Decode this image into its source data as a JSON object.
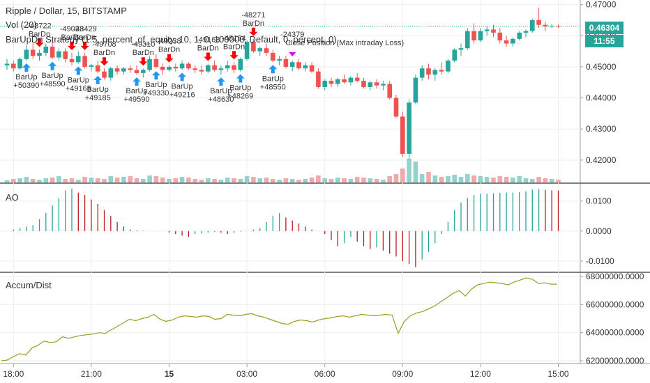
{
  "header": {
    "symbol_line": "Ripple / Dollar, 15, BITSTAMP",
    "vol_line": "Vol (20)",
    "strategy_line": "BarUpDn Strategy (1.5, percent_of_equity, 10, 1, 0, 100000, Default, 0, percent, 0)"
  },
  "panes": {
    "ao_title": "AO",
    "ad_title": "Accum/Dist"
  },
  "price_tag": {
    "last_price": "0.46304",
    "countdown": "11:55"
  },
  "colors": {
    "up": "#26a69a",
    "down": "#ef5350",
    "vol_up": "#80cbc4",
    "vol_down": "#ef9a9a",
    "buy": "#2196f3",
    "sell": "#ff0000",
    "close": "#d500f9",
    "ad_line": "#9e9d24",
    "ao_up": "#26a69a",
    "ao_down": "#b71c1c"
  },
  "chart_data": [
    {
      "type": "candlestick",
      "title": "Ripple / Dollar, 15, BITSTAMP",
      "ylim": [
        0.4128,
        0.4715
      ],
      "yticks": [
        0.42,
        0.43,
        0.44,
        0.45,
        0.46,
        0.47
      ],
      "ytick_labels": [
        "0.42000",
        "0.43000",
        "0.44000",
        "0.45000",
        "0.46000",
        "0.47000"
      ],
      "xticks": [
        {
          "pos": 1,
          "label": "18:00"
        },
        {
          "pos": 13,
          "label": "21:00"
        },
        {
          "pos": 25,
          "label": "15",
          "bold": true
        },
        {
          "pos": 37,
          "label": "03:00"
        },
        {
          "pos": 49,
          "label": "06:00"
        },
        {
          "pos": 61,
          "label": "09:00"
        },
        {
          "pos": 73,
          "label": "12:00"
        },
        {
          "pos": 85,
          "label": "15:00"
        }
      ],
      "last_price": 0.46304,
      "candles": [
        [
          0.4505,
          0.4525,
          0.449,
          0.451
        ],
        [
          0.451,
          0.452,
          0.4485,
          0.4495
        ],
        [
          0.4495,
          0.453,
          0.449,
          0.4525
        ],
        [
          0.4525,
          0.457,
          0.452,
          0.4555
        ],
        [
          0.4555,
          0.4575,
          0.4525,
          0.4535
        ],
        [
          0.4535,
          0.4555,
          0.452,
          0.4545
        ],
        [
          0.4545,
          0.4575,
          0.4535,
          0.4565
        ],
        [
          0.4565,
          0.4585,
          0.4525,
          0.453
        ],
        [
          0.453,
          0.456,
          0.452,
          0.455
        ],
        [
          0.455,
          0.456,
          0.4515,
          0.4525
        ],
        [
          0.4525,
          0.4545,
          0.4505,
          0.4515
        ],
        [
          0.4515,
          0.455,
          0.451,
          0.4535
        ],
        [
          0.4535,
          0.4545,
          0.4495,
          0.45
        ],
        [
          0.45,
          0.451,
          0.4485,
          0.4505
        ],
        [
          0.4505,
          0.452,
          0.448,
          0.4485
        ],
        [
          0.4485,
          0.4495,
          0.446,
          0.4465
        ],
        [
          0.4465,
          0.45,
          0.4455,
          0.4495
        ],
        [
          0.4495,
          0.4505,
          0.4475,
          0.4485
        ],
        [
          0.4485,
          0.45,
          0.4475,
          0.4495
        ],
        [
          0.4495,
          0.4505,
          0.448,
          0.449
        ],
        [
          0.449,
          0.4505,
          0.4475,
          0.448
        ],
        [
          0.448,
          0.4495,
          0.4465,
          0.449
        ],
        [
          0.449,
          0.4535,
          0.4485,
          0.4525
        ],
        [
          0.4525,
          0.454,
          0.4495,
          0.45
        ],
        [
          0.45,
          0.451,
          0.4475,
          0.449
        ],
        [
          0.449,
          0.4505,
          0.4485,
          0.45
        ],
        [
          0.45,
          0.451,
          0.4485,
          0.4495
        ],
        [
          0.4495,
          0.452,
          0.449,
          0.451
        ],
        [
          0.451,
          0.4515,
          0.449,
          0.4495
        ],
        [
          0.4495,
          0.4505,
          0.448,
          0.449
        ],
        [
          0.449,
          0.4505,
          0.4475,
          0.4485
        ],
        [
          0.4485,
          0.451,
          0.448,
          0.4505
        ],
        [
          0.4505,
          0.452,
          0.4485,
          0.449
        ],
        [
          0.449,
          0.4505,
          0.4475,
          0.4495
        ],
        [
          0.4495,
          0.452,
          0.4485,
          0.4505
        ],
        [
          0.4505,
          0.4515,
          0.448,
          0.449
        ],
        [
          0.449,
          0.453,
          0.4485,
          0.4525
        ],
        [
          0.4525,
          0.4585,
          0.452,
          0.458
        ],
        [
          0.458,
          0.459,
          0.4545,
          0.455
        ],
        [
          0.455,
          0.4565,
          0.4535,
          0.456
        ],
        [
          0.456,
          0.4575,
          0.4535,
          0.4545
        ],
        [
          0.4545,
          0.4555,
          0.4515,
          0.452
        ],
        [
          0.452,
          0.4535,
          0.4505,
          0.4525
        ],
        [
          0.4525,
          0.4535,
          0.4495,
          0.45
        ],
        [
          0.45,
          0.452,
          0.4485,
          0.4515
        ],
        [
          0.4515,
          0.4525,
          0.449,
          0.4495
        ],
        [
          0.4495,
          0.4515,
          0.4485,
          0.4505
        ],
        [
          0.4505,
          0.4515,
          0.448,
          0.4485
        ],
        [
          0.4485,
          0.4495,
          0.443,
          0.4435
        ],
        [
          0.4435,
          0.446,
          0.4425,
          0.4455
        ],
        [
          0.4455,
          0.4465,
          0.4435,
          0.4445
        ],
        [
          0.4445,
          0.4465,
          0.4435,
          0.446
        ],
        [
          0.446,
          0.4475,
          0.4445,
          0.445
        ],
        [
          0.445,
          0.447,
          0.444,
          0.4465
        ],
        [
          0.4465,
          0.448,
          0.445,
          0.4455
        ],
        [
          0.4455,
          0.4465,
          0.443,
          0.4435
        ],
        [
          0.4435,
          0.4455,
          0.4425,
          0.445
        ],
        [
          0.445,
          0.446,
          0.443,
          0.444
        ],
        [
          0.444,
          0.4455,
          0.4425,
          0.4445
        ],
        [
          0.4445,
          0.4455,
          0.4395,
          0.44
        ],
        [
          0.44,
          0.441,
          0.4335,
          0.434
        ],
        [
          0.434,
          0.4355,
          0.421,
          0.422
        ],
        [
          0.422,
          0.4395,
          0.42,
          0.4385
        ],
        [
          0.4385,
          0.4475,
          0.438,
          0.4465
        ],
        [
          0.4465,
          0.4505,
          0.4455,
          0.4495
        ],
        [
          0.4495,
          0.451,
          0.446,
          0.4475
        ],
        [
          0.4475,
          0.4495,
          0.4455,
          0.449
        ],
        [
          0.449,
          0.4515,
          0.4475,
          0.4485
        ],
        [
          0.4485,
          0.4525,
          0.448,
          0.452
        ],
        [
          0.452,
          0.456,
          0.4515,
          0.4555
        ],
        [
          0.4555,
          0.4575,
          0.4535,
          0.456
        ],
        [
          0.456,
          0.4625,
          0.4555,
          0.4615
        ],
        [
          0.4615,
          0.464,
          0.4575,
          0.4585
        ],
        [
          0.4585,
          0.4625,
          0.458,
          0.4615
        ],
        [
          0.4615,
          0.463,
          0.46,
          0.462
        ],
        [
          0.462,
          0.4635,
          0.4595,
          0.461
        ],
        [
          0.461,
          0.4625,
          0.4575,
          0.4585
        ],
        [
          0.4585,
          0.46,
          0.4565,
          0.4575
        ],
        [
          0.4575,
          0.4595,
          0.4565,
          0.459
        ],
        [
          0.459,
          0.4615,
          0.4585,
          0.461
        ],
        [
          0.461,
          0.462,
          0.4595,
          0.4615
        ],
        [
          0.4615,
          0.4655,
          0.461,
          0.465
        ],
        [
          0.465,
          0.469,
          0.4625,
          0.4635
        ],
        [
          0.4635,
          0.4645,
          0.4615,
          0.463
        ],
        [
          0.463,
          0.4638,
          0.4625,
          0.4632
        ],
        [
          0.4632,
          0.4636,
          0.4624,
          0.46304
        ]
      ],
      "volume": [
        3,
        5,
        6,
        8,
        5,
        4,
        6,
        7,
        9,
        5,
        6,
        4,
        8,
        7,
        6,
        5,
        9,
        7,
        8,
        9,
        6,
        5,
        10,
        9,
        7,
        5,
        6,
        8,
        7,
        5,
        4,
        6,
        5,
        4,
        7,
        6,
        5,
        9,
        8,
        6,
        7,
        5,
        4,
        6,
        5,
        4,
        5,
        7,
        10,
        6,
        5,
        7,
        6,
        5,
        8,
        7,
        6,
        5,
        4,
        9,
        12,
        20,
        34,
        30,
        12,
        15,
        10,
        8,
        9,
        11,
        8,
        12,
        10,
        9,
        8,
        7,
        9,
        8,
        7,
        9,
        6,
        5,
        8,
        6,
        5,
        4
      ],
      "volume_max": 34,
      "signals": [
        {
          "bar": 3,
          "type": "buy",
          "label": "BarUp",
          "value": "+50390"
        },
        {
          "bar": 7,
          "type": "buy",
          "label": "BarUp",
          "value": "+48590"
        },
        {
          "bar": 11,
          "type": "buy",
          "label": "BarUp",
          "value": "+49165"
        },
        {
          "bar": 14,
          "type": "buy",
          "label": "BarUp",
          "value": "+49185"
        },
        {
          "bar": 20,
          "type": "buy",
          "label": "BarUp",
          "value": "+49590"
        },
        {
          "bar": 23,
          "type": "buy",
          "label": "BarUp",
          "value": "+49330"
        },
        {
          "bar": 27,
          "type": "buy",
          "label": "BarUp",
          "value": "+49216"
        },
        {
          "bar": 33,
          "type": "buy",
          "label": "BarUp",
          "value": "+48630"
        },
        {
          "bar": 36,
          "type": "buy",
          "label": "BarUp",
          "value": "+48269"
        },
        {
          "bar": 41,
          "type": "buy",
          "label": "BarUp",
          "value": "+48550"
        },
        {
          "bar": 5,
          "type": "sell",
          "label": "BarDn",
          "value": "-48722"
        },
        {
          "bar": 10,
          "type": "sell",
          "label": "BarDn",
          "value": "-49023"
        },
        {
          "bar": 12,
          "type": "sell",
          "label": "BarDn",
          "value": "-48429"
        },
        {
          "bar": 15,
          "type": "sell",
          "label": "BarDn",
          "value": "-49708"
        },
        {
          "bar": 21,
          "type": "sell",
          "label": "BarDn",
          "value": "-49310"
        },
        {
          "bar": 25,
          "type": "sell",
          "label": "BarDn",
          "value": "-49238"
        },
        {
          "bar": 31,
          "type": "sell",
          "label": "BarDn",
          "value": "-49163"
        },
        {
          "bar": 35,
          "type": "sell",
          "label": "BarDn",
          "value": "-48154"
        },
        {
          "bar": 38,
          "type": "sell",
          "label": "BarDn",
          "value": "-48271"
        },
        {
          "bar": 44,
          "type": "close",
          "label": "Close Position (Max intraday Loss)",
          "value": "-24379"
        }
      ]
    },
    {
      "type": "bar",
      "title": "AO",
      "ylim": [
        -0.0135,
        0.0155
      ],
      "yticks": [
        -0.01,
        0.0,
        0.01
      ],
      "ytick_labels": [
        "-0.0100",
        "0.0000",
        "0.0100"
      ],
      "values": [
        0.0,
        0.0005,
        0.001,
        0.0015,
        0.002,
        0.004,
        0.006,
        0.0085,
        0.011,
        0.0135,
        0.0142,
        0.0128,
        0.012,
        0.0105,
        0.009,
        0.007,
        0.005,
        0.003,
        0.0015,
        0.0005,
        0.0002,
        0.0001,
        0.0,
        0.0,
        0.0,
        -0.0005,
        -0.001,
        -0.0015,
        -0.002,
        -0.001,
        -0.0008,
        -0.0005,
        -0.0003,
        -0.0005,
        -0.001,
        -0.0006,
        -0.0002,
        0.0,
        0.0005,
        0.001,
        0.003,
        0.005,
        0.006,
        0.0045,
        0.0035,
        0.0025,
        0.0015,
        0.0005,
        0.0,
        -0.001,
        -0.003,
        -0.005,
        -0.004,
        -0.002,
        -0.0035,
        -0.005,
        -0.006,
        -0.0055,
        -0.0065,
        -0.0075,
        -0.0085,
        -0.01,
        -0.011,
        -0.012,
        -0.0095,
        -0.007,
        -0.004,
        -0.001,
        0.003,
        0.007,
        0.0095,
        0.011,
        0.012,
        0.0125,
        0.0125,
        0.0126,
        0.0127,
        0.0128,
        0.0128,
        0.013,
        0.0132,
        0.0138,
        0.014,
        0.0137,
        0.0136,
        0.0135
      ]
    },
    {
      "type": "line",
      "title": "Accum/Dist",
      "ylim": [
        61800000,
        68200000
      ],
      "yticks": [
        62000000,
        64000000,
        66000000,
        68000000
      ],
      "ytick_labels": [
        "62000000.0000",
        "64000000.0000",
        "66000000.0000",
        "68000000.0000"
      ],
      "values": [
        62000000,
        62050000,
        62300000,
        62500000,
        62400000,
        62900000,
        63100000,
        63400000,
        63300000,
        63350000,
        63700000,
        63600000,
        63700000,
        63800000,
        63850000,
        63900000,
        64000000,
        63950000,
        64200000,
        64450000,
        64700000,
        64950000,
        64850000,
        65000000,
        65100000,
        65300000,
        64950000,
        64800000,
        64900000,
        65100000,
        65200000,
        65150000,
        65100000,
        65200000,
        65150000,
        64950000,
        65000000,
        65300000,
        65250000,
        65200000,
        65300000,
        65350000,
        65200000,
        65100000,
        64950000,
        64800000,
        64650000,
        64600000,
        64800000,
        64900000,
        64850000,
        64750000,
        64900000,
        65000000,
        65050000,
        65150000,
        65200000,
        65100000,
        65200000,
        65300000,
        65250000,
        65200000,
        65250000,
        65300000,
        65250000,
        63950000,
        64800000,
        65200000,
        65400000,
        65500000,
        65700000,
        65900000,
        66200000,
        66500000,
        66800000,
        67000000,
        66600000,
        67100000,
        67400000,
        67500000,
        67600000,
        67550000,
        67500000,
        67400000,
        67600000,
        67750000,
        67900000,
        67800000,
        67500000,
        67550000,
        67450000,
        67450000
      ]
    }
  ]
}
